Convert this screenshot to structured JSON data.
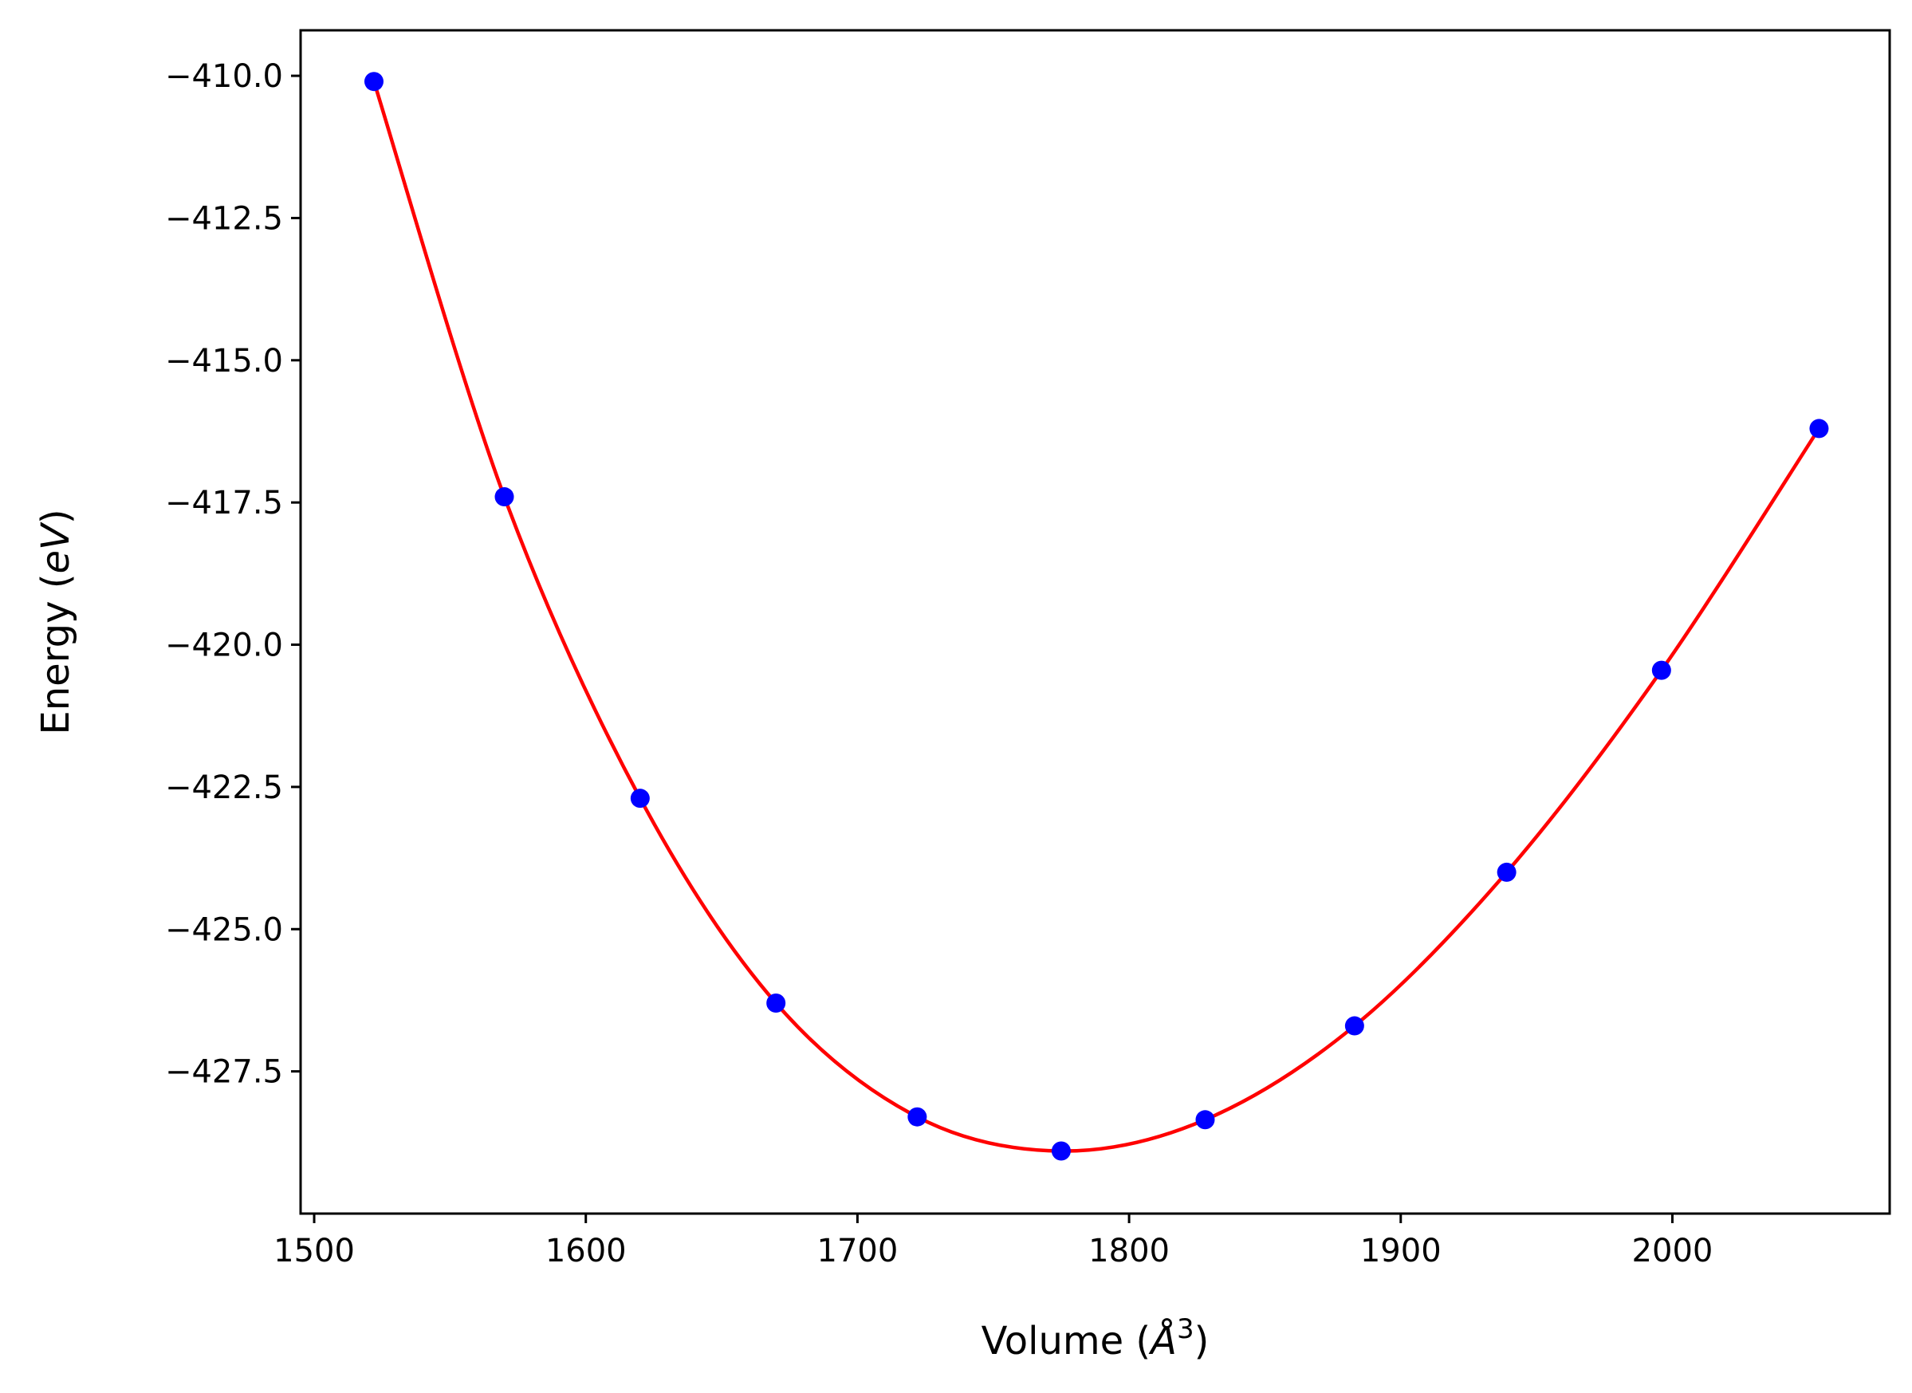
{
  "chart_data": {
    "type": "scatter",
    "title": "",
    "xlabel": "Volume",
    "xlabel_unit": "Å",
    "xlabel_unit_exponent": "3",
    "ylabel": "Energy",
    "ylabel_unit": "eV",
    "xlim": [
      1495,
      2080
    ],
    "ylim": [
      -430.0,
      -409.2
    ],
    "xticks": [
      1500,
      1600,
      1700,
      1800,
      1900,
      2000
    ],
    "xtick_labels": [
      "1500",
      "1600",
      "1700",
      "1800",
      "1900",
      "2000"
    ],
    "yticks": [
      -410.0,
      -412.5,
      -415.0,
      -417.5,
      -420.0,
      -422.5,
      -425.0,
      -427.5
    ],
    "ytick_labels": [
      "−410.0",
      "−412.5",
      "−415.0",
      "−417.5",
      "−420.0",
      "−422.5",
      "−425.0",
      "−427.5"
    ],
    "grid": false,
    "series": [
      {
        "kind": "points",
        "color": "#0000ff",
        "x": [
          1522,
          1570,
          1620,
          1670,
          1722,
          1775,
          1828,
          1883,
          1939,
          1996,
          2054
        ],
        "y": [
          -410.1,
          -417.4,
          -422.7,
          -426.3,
          -428.3,
          -428.9,
          -428.35,
          -426.7,
          -424.0,
          -420.45,
          -416.2
        ]
      },
      {
        "kind": "fit-curve",
        "color": "#ff0000",
        "x": [
          1522,
          1570,
          1620,
          1670,
          1722,
          1775,
          1828,
          1883,
          1939,
          1996,
          2054
        ],
        "y": [
          -410.1,
          -417.4,
          -422.7,
          -426.3,
          -428.3,
          -428.9,
          -428.35,
          -426.7,
          -424.0,
          -420.45,
          -416.2
        ]
      }
    ]
  }
}
